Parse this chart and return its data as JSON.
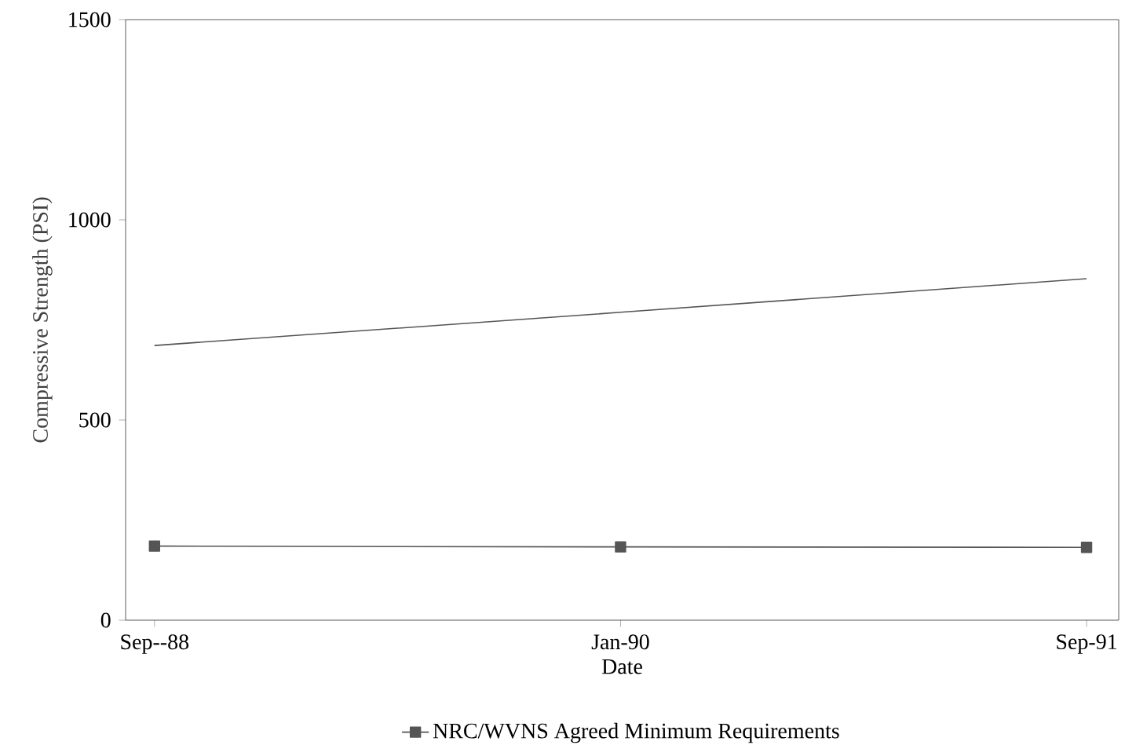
{
  "chart_data": {
    "type": "line",
    "xlabel": "Date",
    "ylabel": "Compressive Strength (PSI)",
    "categories": [
      "Sep--88",
      "Jan-90",
      "Sep-91"
    ],
    "series": [
      {
        "color": "#555555",
        "values": [
          686,
          769,
          853
        ],
        "marker": "none"
      },
      {
        "name": "NRC/WVNS Agreed Minimum Requirements",
        "color": "#555555",
        "values": [
          185,
          183,
          182
        ],
        "marker": "square"
      }
    ],
    "ylim": [
      0,
      1500
    ],
    "yticks": [
      0,
      500,
      1000,
      1500
    ],
    "grid": false,
    "legend": "bottom",
    "line_style": "solid"
  }
}
